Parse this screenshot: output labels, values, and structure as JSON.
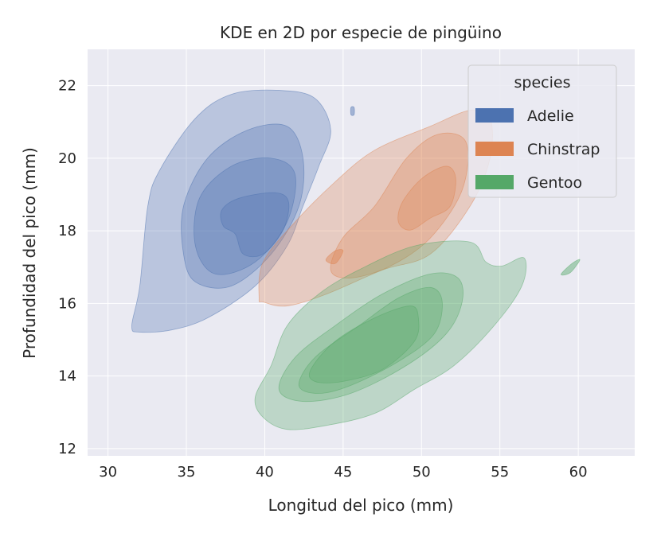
{
  "chart_data": {
    "type": "kde-2d-contour",
    "title": "KDE en 2D por especie de pingüino",
    "xlabel": "Longitud del pico (mm)",
    "ylabel": "Profundidad del pico (mm)",
    "xlim": [
      28.7,
      63.6
    ],
    "ylim": [
      11.8,
      23.0
    ],
    "xticks": [
      30,
      35,
      40,
      45,
      50,
      55,
      60
    ],
    "yticks": [
      12,
      14,
      16,
      18,
      20,
      22
    ],
    "grid": true,
    "background": "#eaeaf2",
    "legend": {
      "title": "species",
      "placement": "top-right"
    },
    "series": [
      {
        "name": "Adelie",
        "color": "#4c72b0",
        "levels": [
          [
            [
              31.52,
              15.38
            ],
            [
              32.03,
              16.48
            ],
            [
              32.54,
              18.68
            ],
            [
              33.3,
              19.67
            ],
            [
              35.58,
              21.1
            ],
            [
              37.87,
              21.76
            ],
            [
              40.91,
              21.87
            ],
            [
              43.2,
              21.65
            ],
            [
              44.21,
              20.77
            ],
            [
              43.45,
              19.78
            ],
            [
              42.44,
              18.68
            ],
            [
              41.42,
              17.58
            ],
            [
              39.39,
              16.48
            ],
            [
              36.35,
              15.6
            ],
            [
              34.06,
              15.27
            ],
            [
              32.03,
              15.21
            ]
          ],
          [
            [
              34.82,
              17.36
            ],
            [
              34.82,
              18.68
            ],
            [
              36.35,
              20.0
            ],
            [
              38.88,
              20.77
            ],
            [
              41.42,
              20.88
            ],
            [
              42.44,
              20.0
            ],
            [
              42.18,
              18.68
            ],
            [
              40.41,
              17.36
            ],
            [
              37.87,
              16.48
            ],
            [
              35.58,
              16.59
            ]
          ],
          [
            [
              35.58,
              17.58
            ],
            [
              35.84,
              18.9
            ],
            [
              37.87,
              19.78
            ],
            [
              40.41,
              20.0
            ],
            [
              41.93,
              19.56
            ],
            [
              41.42,
              18.24
            ],
            [
              39.39,
              17.14
            ],
            [
              36.85,
              16.81
            ]
          ],
          [
            [
              37.26,
              18.57
            ],
            [
              38.38,
              18.9
            ],
            [
              40.66,
              19.05
            ],
            [
              41.52,
              18.79
            ],
            [
              41.17,
              18.02
            ],
            [
              39.9,
              17.36
            ],
            [
              38.63,
              17.36
            ],
            [
              38.12,
              17.91
            ],
            [
              37.36,
              18.13
            ]
          ]
        ],
        "islands": [
          [
            [
              45.5,
              21.4
            ],
            [
              45.7,
              21.4
            ],
            [
              45.7,
              21.2
            ],
            [
              45.5,
              21.2
            ]
          ]
        ]
      },
      {
        "name": "Chinstrap",
        "color": "#dd8452",
        "levels": [
          [
            [
              39.64,
              16.15
            ],
            [
              39.9,
              17.14
            ],
            [
              41.93,
              18.24
            ],
            [
              44.47,
              19.34
            ],
            [
              47.01,
              20.22
            ],
            [
              50.56,
              20.88
            ],
            [
              53.1,
              21.32
            ],
            [
              54.37,
              21.1
            ],
            [
              54.37,
              20.0
            ],
            [
              53.1,
              18.68
            ],
            [
              50.56,
              17.36
            ],
            [
              47.51,
              16.92
            ],
            [
              43.96,
              16.26
            ],
            [
              41.42,
              15.93
            ],
            [
              39.9,
              16.04
            ]
          ],
          [
            [
              44.21,
              16.92
            ],
            [
              44.97,
              17.8
            ],
            [
              47.01,
              18.68
            ],
            [
              49.04,
              20.0
            ],
            [
              51.07,
              20.66
            ],
            [
              52.84,
              20.44
            ],
            [
              52.59,
              19.12
            ],
            [
              50.56,
              17.8
            ],
            [
              48.02,
              17.03
            ],
            [
              45.48,
              16.7
            ]
          ],
          [
            [
              48.53,
              18.24
            ],
            [
              48.78,
              18.79
            ],
            [
              50.05,
              19.45
            ],
            [
              51.57,
              19.78
            ],
            [
              52.18,
              19.45
            ],
            [
              51.83,
              18.68
            ],
            [
              50.56,
              18.35
            ],
            [
              49.29,
              18.02
            ]
          ]
        ],
        "islands": [
          [
            [
              43.9,
              17.2
            ],
            [
              44.5,
              17.45
            ],
            [
              45.0,
              17.45
            ],
            [
              44.5,
              17.1
            ]
          ]
        ]
      },
      {
        "name": "Gentoo",
        "color": "#55a868",
        "levels": [
          [
            [
              39.39,
              13.41
            ],
            [
              40.41,
              14.29
            ],
            [
              41.42,
              15.38
            ],
            [
              43.45,
              16.26
            ],
            [
              45.99,
              16.92
            ],
            [
              49.54,
              17.58
            ],
            [
              53.1,
              17.69
            ],
            [
              54.11,
              17.14
            ],
            [
              55.13,
              17.03
            ],
            [
              56.55,
              17.25
            ],
            [
              56.4,
              16.48
            ],
            [
              54.62,
              15.38
            ],
            [
              52.08,
              14.29
            ],
            [
              49.54,
              13.63
            ],
            [
              47.01,
              12.97
            ],
            [
              43.96,
              12.64
            ],
            [
              41.42,
              12.53
            ],
            [
              39.9,
              12.86
            ]
          ],
          [
            [
              40.91,
              13.63
            ],
            [
              41.93,
              14.51
            ],
            [
              44.47,
              15.38
            ],
            [
              47.51,
              16.26
            ],
            [
              50.56,
              16.81
            ],
            [
              52.33,
              16.7
            ],
            [
              52.59,
              16.04
            ],
            [
              51.57,
              15.16
            ],
            [
              49.04,
              14.29
            ],
            [
              45.48,
              13.52
            ],
            [
              42.44,
              13.3
            ]
          ],
          [
            [
              42.18,
              13.74
            ],
            [
              43.2,
              14.51
            ],
            [
              45.99,
              15.38
            ],
            [
              48.53,
              16.15
            ],
            [
              50.56,
              16.44
            ],
            [
              51.32,
              16.04
            ],
            [
              50.81,
              15.16
            ],
            [
              48.53,
              14.4
            ],
            [
              45.48,
              13.74
            ],
            [
              43.45,
              13.52
            ]
          ],
          [
            [
              42.94,
              14.18
            ],
            [
              44.47,
              14.95
            ],
            [
              47.01,
              15.6
            ],
            [
              49.29,
              15.93
            ],
            [
              49.8,
              15.6
            ],
            [
              49.54,
              14.95
            ],
            [
              47.51,
              14.18
            ],
            [
              44.97,
              13.85
            ],
            [
              43.2,
              13.85
            ]
          ]
        ],
        "islands": [
          [
            [
              58.9,
              16.8
            ],
            [
              59.6,
              17.1
            ],
            [
              60.1,
              17.2
            ],
            [
              59.5,
              16.85
            ]
          ]
        ]
      }
    ]
  }
}
